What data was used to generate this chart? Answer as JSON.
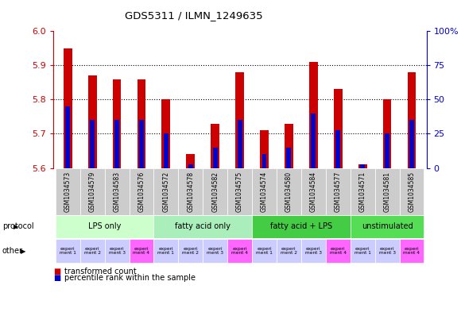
{
  "title": "GDS5311 / ILMN_1249635",
  "samples": [
    "GSM1034573",
    "GSM1034579",
    "GSM1034583",
    "GSM1034576",
    "GSM1034572",
    "GSM1034578",
    "GSM1034582",
    "GSM1034575",
    "GSM1034574",
    "GSM1034580",
    "GSM1034584",
    "GSM1034577",
    "GSM1034571",
    "GSM1034581",
    "GSM1034585"
  ],
  "red_values": [
    5.95,
    5.87,
    5.86,
    5.86,
    5.8,
    5.64,
    5.73,
    5.88,
    5.71,
    5.73,
    5.91,
    5.83,
    5.61,
    5.8,
    5.88
  ],
  "blue_values": [
    5.78,
    5.74,
    5.74,
    5.74,
    5.7,
    5.61,
    5.66,
    5.74,
    5.64,
    5.66,
    5.76,
    5.71,
    5.61,
    5.7,
    5.74
  ],
  "ylim": [
    5.6,
    6.0
  ],
  "yticks": [
    5.6,
    5.7,
    5.8,
    5.9,
    6.0
  ],
  "right_yticks": [
    0,
    25,
    50,
    75,
    100
  ],
  "right_ytick_labels": [
    "0",
    "25",
    "50",
    "75",
    "100%"
  ],
  "protocols": [
    {
      "label": "LPS only",
      "start": 0,
      "end": 4,
      "color": "#ccffcc"
    },
    {
      "label": "fatty acid only",
      "start": 4,
      "end": 8,
      "color": "#aaeebb"
    },
    {
      "label": "fatty acid + LPS",
      "start": 8,
      "end": 12,
      "color": "#44cc44"
    },
    {
      "label": "unstimulated",
      "start": 12,
      "end": 15,
      "color": "#55dd55"
    }
  ],
  "other_labels": [
    "experi\nment 1",
    "experi\nment 2",
    "experi\nment 3",
    "experi\nment 4",
    "experi\nment 1",
    "experi\nment 2",
    "experi\nment 3",
    "experi\nment 4",
    "experi\nment 1",
    "experi\nment 2",
    "experi\nment 3",
    "experi\nment 4",
    "experi\nment 1",
    "experi\nment 3",
    "experi\nment 4"
  ],
  "other_colors": [
    "#ccccff",
    "#ccccff",
    "#ccccff",
    "#ff66ff",
    "#ccccff",
    "#ccccff",
    "#ccccff",
    "#ff66ff",
    "#ccccff",
    "#ccccff",
    "#ccccff",
    "#ff66ff",
    "#ccccff",
    "#ccccff",
    "#ff66ff"
  ],
  "bar_width": 0.35,
  "bar_color_red": "#cc0000",
  "bar_color_blue": "#0000cc",
  "background_color": "#ffffff",
  "yaxis_color": "#cc0000",
  "right_yaxis_color": "#0000cc",
  "sample_bg_color": "#cccccc"
}
